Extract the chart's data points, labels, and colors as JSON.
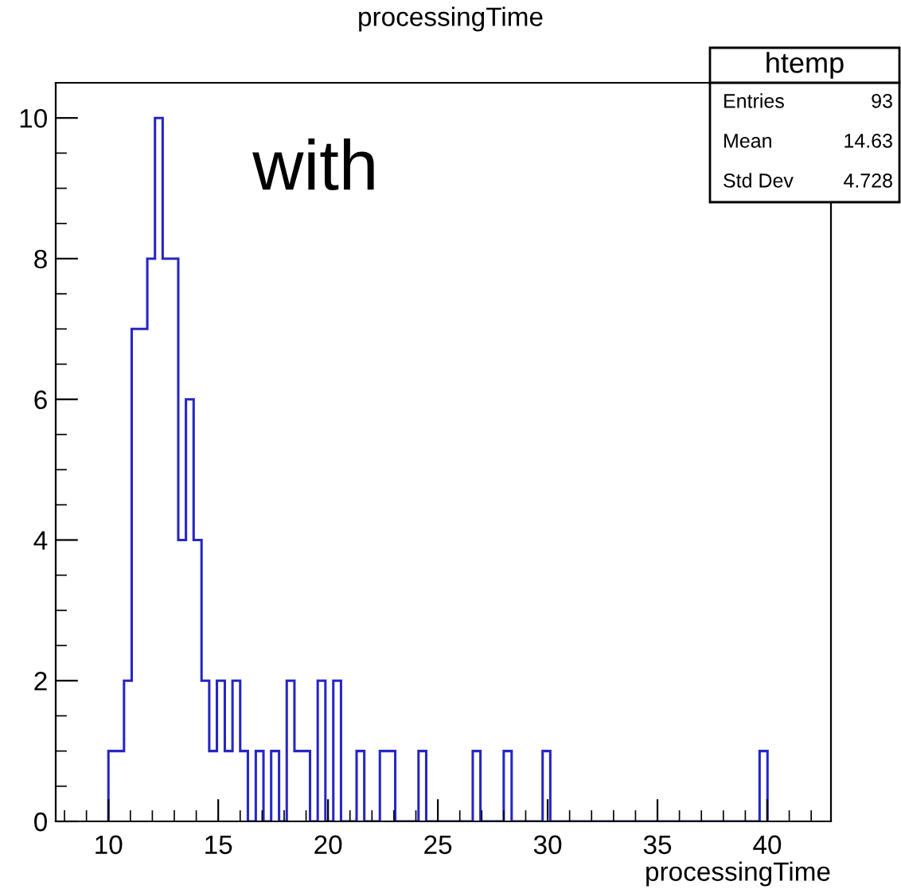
{
  "chart_data": {
    "type": "histogram",
    "title": "processingTime",
    "xlabel": "processingTime",
    "annotations": [
      "with",
      "htemp",
      "Entries",
      "93",
      "Mean",
      "14.63",
      "Std Dev",
      "4.728"
    ],
    "bins": [
      10.0,
      10.35,
      10.71,
      11.06,
      11.41,
      11.77,
      12.12,
      12.47,
      12.82,
      13.18,
      13.53,
      13.88,
      14.24,
      14.59,
      14.94,
      15.3,
      15.65,
      16.0,
      16.35,
      16.71,
      17.06,
      17.41,
      17.77,
      18.12,
      18.47,
      18.83,
      19.18,
      19.53,
      19.88,
      20.24,
      20.59,
      20.94,
      21.3,
      21.65,
      22.0,
      22.36,
      22.71,
      23.06,
      23.41,
      23.77,
      24.12,
      24.47,
      24.83,
      25.18,
      25.53,
      25.89,
      26.24,
      26.59,
      26.94,
      27.3,
      27.65,
      28.0,
      28.36,
      28.71,
      29.06,
      29.42,
      29.77,
      30.12,
      30.47,
      30.83,
      31.18,
      31.53,
      31.89,
      32.24,
      32.59,
      32.95,
      33.3,
      33.65,
      34.0,
      34.36,
      34.71,
      35.06,
      35.42,
      35.77,
      36.12,
      36.48,
      36.83,
      37.18,
      37.53,
      37.89,
      38.24,
      38.59,
      38.95,
      39.3,
      39.65,
      40.01
    ],
    "values": [
      1,
      1,
      2,
      7,
      7,
      8,
      10,
      8,
      8,
      4,
      6,
      4,
      2,
      1,
      2,
      1,
      2,
      1,
      0,
      1,
      0,
      1,
      0,
      2,
      1,
      1,
      0,
      2,
      0,
      2,
      0,
      0,
      1,
      0,
      0,
      1,
      1,
      0,
      0,
      0,
      1,
      0,
      0,
      0,
      0,
      0,
      0,
      1,
      0,
      0,
      0,
      1,
      0,
      0,
      0,
      0,
      1,
      0,
      0,
      0,
      0,
      0,
      0,
      0,
      0,
      0,
      0,
      0,
      0,
      0,
      0,
      0,
      0,
      0,
      0,
      0,
      0,
      0,
      0,
      0,
      0,
      0,
      0,
      0,
      1
    ],
    "color": "#2626c4",
    "xlim": [
      7.6,
      42.9
    ],
    "xticks": [
      10,
      15,
      20,
      25,
      30,
      35,
      40
    ],
    "ylim": [
      0,
      10.5
    ],
    "yticks": [
      0,
      2,
      4,
      6,
      8,
      10
    ],
    "grid": false,
    "legend": false
  }
}
